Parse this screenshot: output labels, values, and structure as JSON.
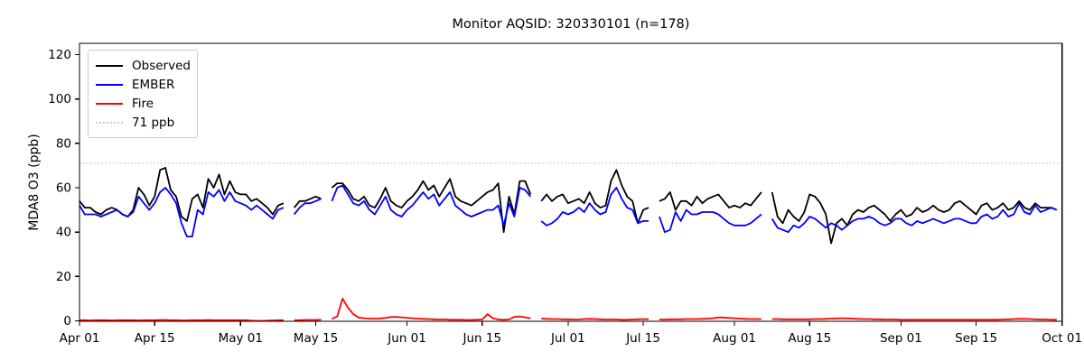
{
  "figure": {
    "background": "#ffffff"
  },
  "chart_data": {
    "type": "line",
    "title": "Monitor AQSID: 320330101 (n=178)",
    "n_shown_in_title": 178,
    "xlabel": "",
    "ylabel": "MDA8 O3 (ppb)",
    "x_unit": "days since Apr 01",
    "xlim_days": [
      0,
      183
    ],
    "ylim": [
      -0.5,
      125
    ],
    "y_ticks": [
      0,
      20,
      40,
      60,
      80,
      100,
      120
    ],
    "x_tick_days": [
      0,
      14,
      30,
      44,
      61,
      75,
      91,
      105,
      122,
      136,
      153,
      167,
      183
    ],
    "x_tick_labels": [
      "Apr 01",
      "Apr 15",
      "May 01",
      "May 15",
      "Jun 01",
      "Jun 15",
      "Jul 01",
      "Jul 15",
      "Aug 01",
      "Aug 15",
      "Sep 01",
      "Sep 15",
      "Oct 01"
    ],
    "grid": false,
    "threshold": {
      "value": 71,
      "label": "71 ppb",
      "color": "#c8c8c8",
      "style": "dotted"
    },
    "legend": {
      "position": "upper left",
      "items": [
        {
          "label": "Observed",
          "color": "#000000",
          "style": "solid"
        },
        {
          "label": "EMBER",
          "color": "#0000ff",
          "style": "solid"
        },
        {
          "label": "Fire",
          "color": "#ff0000",
          "style": "solid"
        },
        {
          "label": "71 ppb",
          "color": "#c8c8c8",
          "style": "dotted"
        }
      ]
    },
    "series": [
      {
        "name": "Observed",
        "color": "#000000",
        "values": [
          54,
          51,
          51,
          49,
          48,
          50,
          51,
          50,
          48,
          47,
          50,
          60,
          57,
          52,
          56,
          68,
          69,
          59,
          56,
          47,
          45,
          55,
          57,
          51,
          64,
          60,
          66,
          57,
          63,
          58,
          57,
          57,
          54,
          55,
          53,
          51,
          48,
          52,
          53,
          null,
          51,
          54,
          54,
          55,
          56,
          55,
          null,
          60,
          62,
          62,
          59,
          55,
          54,
          56,
          52,
          51,
          55,
          60,
          54,
          52,
          51,
          54,
          56,
          59,
          63,
          59,
          61,
          56,
          60,
          64,
          56,
          54,
          53,
          52,
          54,
          56,
          58,
          59,
          62,
          40,
          56,
          48,
          63,
          63,
          57,
          null,
          54,
          57,
          54,
          56,
          57,
          53,
          54,
          55,
          53,
          58,
          53,
          51,
          52,
          63,
          68,
          61,
          56,
          54,
          44,
          50,
          51,
          null,
          54,
          55,
          58,
          50,
          54,
          54,
          52,
          56,
          53,
          55,
          56,
          57,
          54,
          51,
          52,
          51,
          53,
          52,
          55,
          58,
          null,
          58,
          47,
          44,
          50,
          47,
          45,
          49,
          57,
          56,
          53,
          48,
          35,
          44,
          46,
          43,
          48,
          50,
          49,
          51,
          52,
          50,
          48,
          45,
          48,
          50,
          47,
          48,
          51,
          49,
          50,
          52,
          50,
          49,
          50,
          53,
          54,
          52,
          50,
          48,
          52,
          53,
          50,
          51,
          53,
          50,
          51,
          54,
          51,
          50,
          53,
          51,
          51,
          51,
          50
        ]
      },
      {
        "name": "EMBER",
        "color": "#0000ff",
        "values": [
          52,
          48,
          48,
          48,
          47,
          48,
          49,
          50,
          48,
          47,
          49,
          56,
          53,
          50,
          53,
          58,
          60,
          57,
          53,
          44,
          38,
          38,
          50,
          48,
          58,
          56,
          59,
          54,
          58,
          54,
          53,
          52,
          50,
          52,
          50,
          48,
          46,
          50,
          51,
          null,
          48,
          51,
          53,
          53,
          54,
          55,
          null,
          54,
          60,
          61,
          57,
          53,
          52,
          54,
          50,
          48,
          52,
          56,
          50,
          48,
          47,
          50,
          52,
          55,
          58,
          55,
          57,
          52,
          55,
          58,
          52,
          50,
          48,
          47,
          48,
          49,
          50,
          50,
          52,
          43,
          53,
          47,
          60,
          59,
          56,
          null,
          45,
          43,
          44,
          46,
          49,
          48,
          49,
          51,
          49,
          53,
          50,
          48,
          49,
          57,
          60,
          55,
          51,
          50,
          44,
          45,
          45,
          null,
          47,
          40,
          41,
          49,
          45,
          50,
          48,
          48,
          49,
          49,
          49,
          48,
          46,
          44,
          43,
          43,
          43,
          44,
          46,
          48,
          null,
          46,
          42,
          41,
          40,
          43,
          42,
          44,
          47,
          46,
          44,
          42,
          44,
          43,
          41,
          43,
          45,
          46,
          46,
          47,
          46,
          44,
          43,
          44,
          46,
          46,
          44,
          43,
          45,
          44,
          45,
          46,
          45,
          44,
          45,
          46,
          46,
          45,
          44,
          44,
          47,
          48,
          46,
          47,
          50,
          47,
          48,
          53,
          49,
          48,
          52,
          49,
          50,
          51,
          50
        ]
      },
      {
        "name": "Fire",
        "color": "#ff0000",
        "values": [
          0.3,
          0.3,
          0.2,
          0.3,
          0.3,
          0.3,
          0.2,
          0.3,
          0.3,
          0.3,
          0.3,
          0.2,
          0.3,
          0.3,
          0.3,
          0.4,
          0.4,
          0.3,
          0.3,
          0.2,
          0.2,
          0.3,
          0.3,
          0.3,
          0.4,
          0.3,
          0.3,
          0.3,
          0.3,
          0.3,
          0.3,
          0.3,
          0.1,
          0,
          0,
          0.1,
          0.2,
          0.3,
          0.3,
          null,
          0.3,
          0.3,
          0.4,
          0.4,
          0.4,
          0.5,
          null,
          0.8,
          2,
          10,
          6,
          3,
          1.5,
          1.2,
          1,
          1,
          1.1,
          1.3,
          1.7,
          1.8,
          1.6,
          1.4,
          1.2,
          1,
          0.9,
          0.8,
          0.7,
          0.6,
          0.6,
          0.5,
          0.5,
          0.5,
          0.4,
          0.4,
          0.5,
          0.6,
          3,
          1.2,
          0.6,
          0.5,
          0.6,
          1.8,
          2,
          1.6,
          1.2,
          null,
          1,
          0.9,
          0.8,
          0.8,
          0.7,
          0.7,
          0.6,
          0.6,
          0.8,
          0.9,
          0.8,
          0.7,
          0.6,
          0.6,
          0.6,
          0.5,
          0.5,
          0.6,
          0.7,
          0.8,
          0.7,
          null,
          0.6,
          0.6,
          0.7,
          0.7,
          0.7,
          0.8,
          0.8,
          0.8,
          0.9,
          1,
          1.2,
          1.5,
          1.5,
          1.3,
          1.2,
          1,
          0.9,
          0.8,
          0.8,
          0.8,
          null,
          0.8,
          0.8,
          0.7,
          0.7,
          0.7,
          0.7,
          0.7,
          0.7,
          0.8,
          0.8,
          0.9,
          1,
          1.1,
          1.2,
          1.1,
          1,
          0.9,
          0.8,
          0.8,
          0.7,
          0.7,
          0.6,
          0.6,
          0.6,
          0.5,
          0.5,
          0.5,
          0.5,
          0.5,
          0.5,
          0.5,
          0.5,
          0.5,
          0.5,
          0.5,
          0.5,
          0.5,
          0.5,
          0.5,
          0.5,
          0.5,
          0.5,
          0.5,
          0.6,
          0.7,
          0.8,
          0.9,
          0.9,
          0.8,
          0.7,
          0.6,
          0.6,
          0.5,
          0.5
        ]
      }
    ]
  }
}
